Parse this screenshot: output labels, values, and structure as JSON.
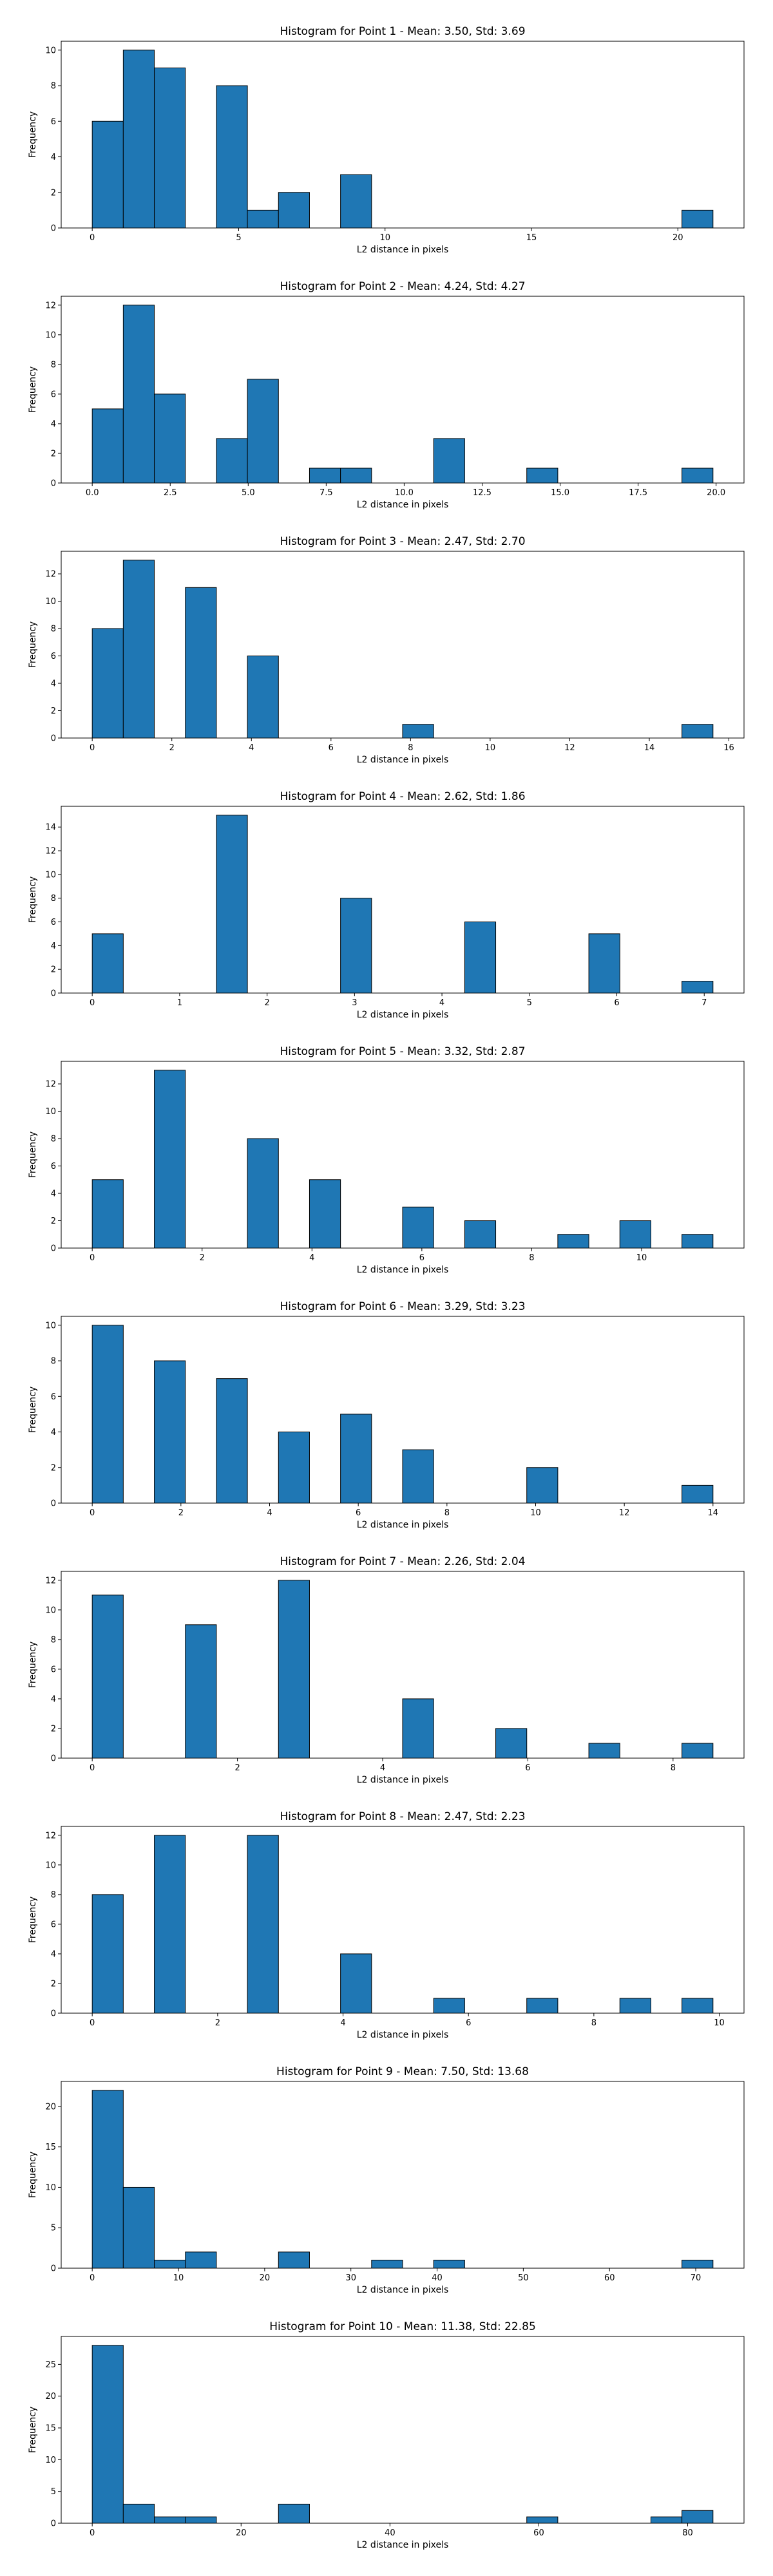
{
  "chart_data": [
    {
      "type": "histogram",
      "title": "Histogram for Point 1 - Mean: 3.50, Std: 3.69",
      "x_label": "L2 distance in pixels",
      "y_label": "Frequency",
      "color": "#1f77b4",
      "bins": [
        0,
        1.06,
        2.12,
        3.18,
        4.24,
        5.3,
        6.36,
        7.42,
        8.48,
        9.54,
        10.6,
        11.66,
        12.72,
        13.78,
        14.84,
        15.9,
        16.96,
        18.02,
        19.08,
        20.14,
        21.2
      ],
      "values": [
        6,
        10,
        9,
        0,
        8,
        1,
        2,
        0,
        3,
        0,
        0,
        0,
        0,
        0,
        0,
        0,
        0,
        0,
        0,
        1
      ],
      "xlim": [
        -1.06,
        22.26
      ],
      "ylim": [
        0,
        10.5
      ],
      "xticks": [
        0,
        5,
        10,
        15,
        20
      ],
      "yticks": [
        0,
        2,
        4,
        6,
        8,
        10
      ]
    },
    {
      "type": "histogram",
      "title": "Histogram for Point 2 - Mean: 4.24, Std: 4.27",
      "x_label": "L2 distance in pixels",
      "y_label": "Frequency",
      "color": "#1f77b4",
      "bins": [
        0,
        0.995,
        1.99,
        2.985,
        3.98,
        4.975,
        5.97,
        6.965,
        7.96,
        8.955,
        9.95,
        10.945,
        11.94,
        12.935,
        13.93,
        14.925,
        15.92,
        16.915,
        17.91,
        18.905,
        19.9
      ],
      "values": [
        5,
        12,
        6,
        0,
        3,
        7,
        0,
        1,
        1,
        0,
        0,
        3,
        0,
        0,
        1,
        0,
        0,
        0,
        0,
        1
      ],
      "xlim": [
        -0.995,
        20.895
      ],
      "ylim": [
        0,
        12.6
      ],
      "xticks": [
        {
          "value": 0,
          "label": "0.0"
        },
        2.5,
        {
          "value": 5,
          "label": "5.0"
        },
        7.5,
        {
          "value": 10,
          "label": "10.0"
        },
        12.5,
        {
          "value": 15,
          "label": "15.0"
        },
        17.5,
        {
          "value": 20,
          "label": "20.0"
        }
      ],
      "yticks": [
        0,
        2,
        4,
        6,
        8,
        10,
        12
      ]
    },
    {
      "type": "histogram",
      "title": "Histogram for Point 3 - Mean: 2.47, Std: 2.70",
      "x_label": "L2 distance in pixels",
      "y_label": "Frequency",
      "color": "#1f77b4",
      "bins": [
        0,
        0.78,
        1.56,
        2.34,
        3.12,
        3.9,
        4.68,
        5.46,
        6.24,
        7.02,
        7.8,
        8.58,
        9.36,
        10.14,
        10.92,
        11.7,
        12.48,
        13.26,
        14.04,
        14.82,
        15.6
      ],
      "values": [
        8,
        13,
        0,
        11,
        0,
        6,
        0,
        0,
        0,
        0,
        1,
        0,
        0,
        0,
        0,
        0,
        0,
        0,
        0,
        1
      ],
      "xlim": [
        -0.78,
        16.38
      ],
      "ylim": [
        0,
        13.65
      ],
      "xticks": [
        0,
        2,
        4,
        6,
        8,
        10,
        12,
        14,
        16
      ],
      "yticks": [
        0,
        2,
        4,
        6,
        8,
        10,
        12
      ]
    },
    {
      "type": "histogram",
      "title": "Histogram for Point 4 - Mean: 2.62, Std: 1.86",
      "x_label": "L2 distance in pixels",
      "y_label": "Frequency",
      "color": "#1f77b4",
      "bins": [
        0,
        0.355,
        0.71,
        1.065,
        1.42,
        1.775,
        2.13,
        2.485,
        2.84,
        3.195,
        3.55,
        3.905,
        4.26,
        4.615,
        4.97,
        5.325,
        5.68,
        6.035,
        6.39,
        6.745,
        7.1
      ],
      "values": [
        5,
        0,
        0,
        0,
        15,
        0,
        0,
        0,
        8,
        0,
        0,
        0,
        6,
        0,
        0,
        0,
        5,
        0,
        0,
        1
      ],
      "xlim": [
        -0.355,
        7.455
      ],
      "ylim": [
        0,
        15.75
      ],
      "xticks": [
        0,
        1,
        2,
        3,
        4,
        5,
        6,
        7
      ],
      "yticks": [
        0,
        2,
        4,
        6,
        8,
        10,
        12,
        14
      ]
    },
    {
      "type": "histogram",
      "title": "Histogram for Point 5 - Mean: 3.32, Std: 2.87",
      "x_label": "L2 distance in pixels",
      "y_label": "Frequency",
      "color": "#1f77b4",
      "bins": [
        0,
        0.565,
        1.13,
        1.695,
        2.26,
        2.825,
        3.39,
        3.955,
        4.52,
        5.085,
        5.65,
        6.215,
        6.78,
        7.345,
        7.91,
        8.475,
        9.04,
        9.605,
        10.17,
        10.735,
        11.3
      ],
      "values": [
        5,
        0,
        13,
        0,
        0,
        8,
        0,
        5,
        0,
        0,
        3,
        0,
        2,
        0,
        0,
        1,
        0,
        2,
        0,
        1
      ],
      "xlim": [
        -0.565,
        11.865
      ],
      "ylim": [
        0,
        13.65
      ],
      "xticks": [
        0,
        2,
        4,
        6,
        8,
        10
      ],
      "yticks": [
        0,
        2,
        4,
        6,
        8,
        10,
        12
      ]
    },
    {
      "type": "histogram",
      "title": "Histogram for Point 6 - Mean: 3.29, Std: 3.23",
      "x_label": "L2 distance in pixels",
      "y_label": "Frequency",
      "color": "#1f77b4",
      "bins": [
        0,
        0.7,
        1.4,
        2.1,
        2.8,
        3.5,
        4.2,
        4.9,
        5.6,
        6.3,
        7,
        7.7,
        8.4,
        9.1,
        9.8,
        10.5,
        11.2,
        11.9,
        12.6,
        13.3,
        14
      ],
      "values": [
        10,
        0,
        8,
        0,
        7,
        0,
        4,
        0,
        5,
        0,
        3,
        0,
        0,
        0,
        2,
        0,
        0,
        0,
        0,
        1
      ],
      "xlim": [
        -0.7,
        14.7
      ],
      "ylim": [
        0,
        10.5
      ],
      "xticks": [
        0,
        2,
        4,
        6,
        8,
        10,
        12,
        14
      ],
      "yticks": [
        0,
        2,
        4,
        6,
        8,
        10
      ]
    },
    {
      "type": "histogram",
      "title": "Histogram for Point 7 - Mean: 2.26, Std: 2.04",
      "x_label": "L2 distance in pixels",
      "y_label": "Frequency",
      "color": "#1f77b4",
      "bins": [
        0,
        0.4275,
        0.855,
        1.2825,
        1.71,
        2.1375,
        2.565,
        2.9925,
        3.42,
        3.8475,
        4.275,
        4.7025,
        5.13,
        5.5575,
        5.985,
        6.4125,
        6.84,
        7.2675,
        7.695,
        8.1225,
        8.55
      ],
      "values": [
        11,
        0,
        0,
        9,
        0,
        0,
        12,
        0,
        0,
        0,
        4,
        0,
        0,
        2,
        0,
        0,
        1,
        0,
        0,
        1
      ],
      "xlim": [
        -0.4275,
        8.9775
      ],
      "ylim": [
        0,
        12.6
      ],
      "xticks": [
        0,
        2,
        4,
        6,
        8
      ],
      "yticks": [
        0,
        2,
        4,
        6,
        8,
        10,
        12
      ]
    },
    {
      "type": "histogram",
      "title": "Histogram for Point 8 - Mean: 2.47, Std: 2.23",
      "x_label": "L2 distance in pixels",
      "y_label": "Frequency",
      "color": "#1f77b4",
      "bins": [
        0,
        0.495,
        0.99,
        1.485,
        1.98,
        2.475,
        2.97,
        3.465,
        3.96,
        4.455,
        4.95,
        5.445,
        5.94,
        6.435,
        6.93,
        7.425,
        7.92,
        8.415,
        8.91,
        9.405,
        9.9
      ],
      "values": [
        8,
        0,
        12,
        0,
        0,
        12,
        0,
        0,
        4,
        0,
        0,
        1,
        0,
        0,
        1,
        0,
        0,
        1,
        0,
        1
      ],
      "xlim": [
        -0.495,
        10.395
      ],
      "ylim": [
        0,
        12.6
      ],
      "xticks": [
        0,
        2,
        4,
        6,
        8,
        10
      ],
      "yticks": [
        0,
        2,
        4,
        6,
        8,
        10,
        12
      ]
    },
    {
      "type": "histogram",
      "title": "Histogram for Point 9 - Mean: 7.50, Std: 13.68",
      "x_label": "L2 distance in pixels",
      "y_label": "Frequency",
      "color": "#1f77b4",
      "bins": [
        0,
        3.6,
        7.2,
        10.8,
        14.4,
        18,
        21.6,
        25.2,
        28.8,
        32.4,
        36,
        39.6,
        43.2,
        46.8,
        50.4,
        54,
        57.6,
        61.2,
        64.8,
        68.4,
        72
      ],
      "values": [
        22,
        10,
        1,
        2,
        0,
        0,
        2,
        0,
        0,
        1,
        0,
        1,
        0,
        0,
        0,
        0,
        0,
        0,
        0,
        1
      ],
      "xlim": [
        -3.6,
        75.6
      ],
      "ylim": [
        0,
        23.1
      ],
      "xticks": [
        0,
        10,
        20,
        30,
        40,
        50,
        60,
        70
      ],
      "yticks": [
        0,
        5,
        10,
        15,
        20
      ]
    },
    {
      "type": "histogram",
      "title": "Histogram for Point 10 - Mean: 11.38, Std: 22.85",
      "x_label": "L2 distance in pixels",
      "y_label": "Frequency",
      "color": "#1f77b4",
      "bins": [
        0,
        4.17,
        8.34,
        12.51,
        16.68,
        20.85,
        25.02,
        29.19,
        33.36,
        37.53,
        41.7,
        45.87,
        50.04,
        54.21,
        58.38,
        62.55,
        66.72,
        70.89,
        75.06,
        79.23,
        83.4
      ],
      "values": [
        28,
        3,
        1,
        1,
        0,
        0,
        3,
        0,
        0,
        0,
        0,
        0,
        0,
        0,
        1,
        0,
        0,
        0,
        1,
        2
      ],
      "xlim": [
        -4.17,
        87.57
      ],
      "ylim": [
        0,
        29.4
      ],
      "xticks": [
        0,
        20,
        40,
        60,
        80
      ],
      "yticks": [
        0,
        5,
        10,
        15,
        20,
        25
      ]
    }
  ]
}
